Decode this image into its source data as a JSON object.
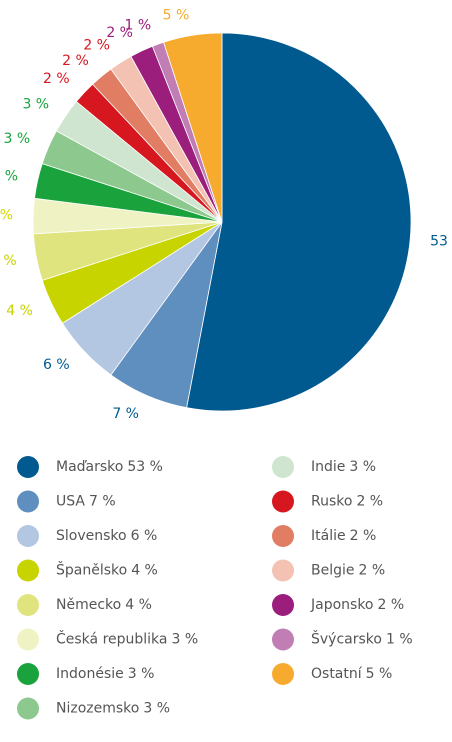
{
  "chart_data": {
    "type": "pie",
    "categories": [
      "Maďarsko",
      "USA",
      "Slovensko",
      "Španělsko",
      "Německo",
      "Česká republika",
      "Indonésie",
      "Nizozemsko",
      "Indie",
      "Rusko",
      "Itálie",
      "Belgie",
      "Japonsko",
      "Švýcarsko",
      "Ostatní"
    ],
    "values": [
      53,
      7,
      6,
      4,
      4,
      3,
      3,
      3,
      3,
      2,
      2,
      2,
      2,
      1,
      5
    ],
    "value_labels": [
      "53 %",
      "7 %",
      "6 %",
      "4 %",
      "4 %",
      "3 %",
      "3 %",
      "3 %",
      "3 %",
      "2 %",
      "2 %",
      "2 %",
      "2 %",
      "1 %",
      "5 %"
    ],
    "colors": [
      "#005a8f",
      "#5f8fbf",
      "#b3c6e2",
      "#c8d400",
      "#e0e47e",
      "#eff3c3",
      "#1aa33c",
      "#8dc98e",
      "#cfe5cf",
      "#d7171f",
      "#e07d63",
      "#f3c2b2",
      "#9b1e7c",
      "#c07eb4",
      "#f7ab2e"
    ],
    "label_colors": [
      "#005a8f",
      "#005a8f",
      "#005a8f",
      "#c8d400",
      "#c8d400",
      "#d4d800",
      "#1aa33c",
      "#1aa33c",
      "#1aa33c",
      "#d7171f",
      "#d7171f",
      "#d7171f",
      "#9b1e7c",
      "#9b1e7c",
      "#f7ab2e"
    ]
  }
}
